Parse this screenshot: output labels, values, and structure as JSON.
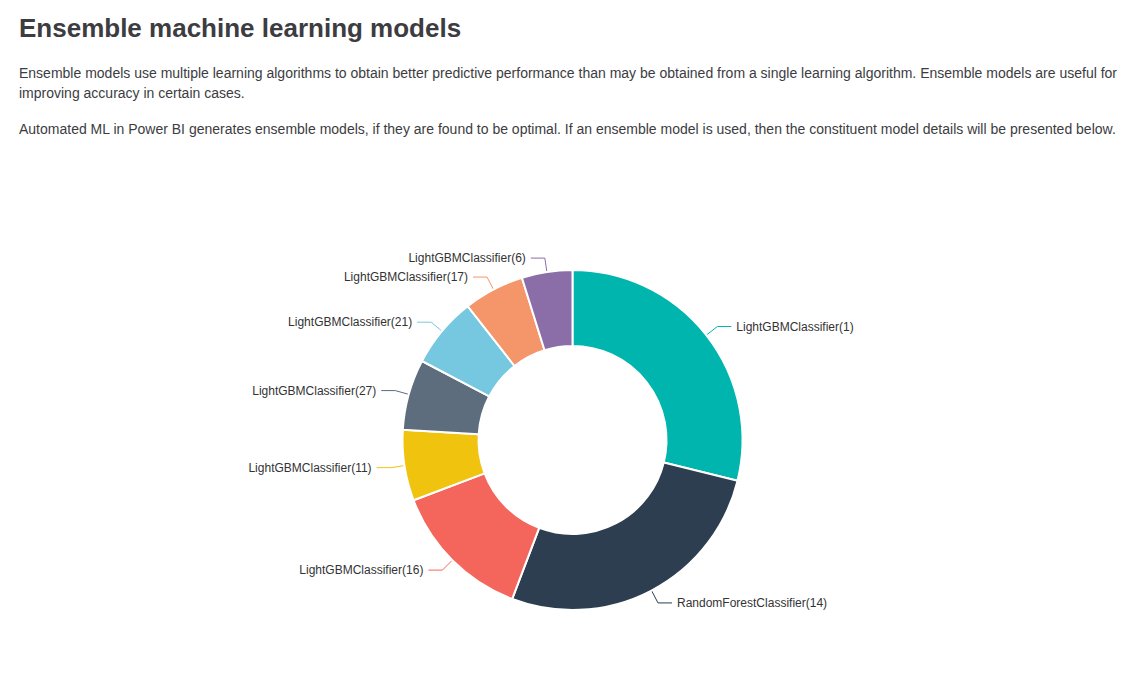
{
  "chart_data": {
    "type": "pie",
    "title": "Ensemble machine learning models",
    "subtitle": [
      "Ensemble models use multiple learning algorithms to obtain better predictive performance than may be obtained from a single learning algorithm. Ensemble models are useful for improving accuracy in certain cases.",
      "Automated ML in Power BI generates ensemble models, if they are found to be optimal. If an ensemble model is used, then the constituent model details will be presented below."
    ],
    "categories": [
      "LightGBMClassifier(1)",
      "RandomForestClassifier(14)",
      "LightGBMClassifier(16)",
      "LightGBMClassifier(11)",
      "LightGBMClassifier(27)",
      "LightGBMClassifier(21)",
      "LightGBMClassifier(17)",
      "LightGBMClassifier(6)"
    ],
    "values": [
      30,
      28,
      14,
      7,
      7,
      7,
      6,
      5
    ],
    "colors": [
      "#00B5AD",
      "#2C3E50",
      "#F4665C",
      "#F0C30F",
      "#5D6D7E",
      "#76C7E0",
      "#F4956A",
      "#8B6EA8"
    ],
    "legend": false,
    "data_labels": false
  }
}
